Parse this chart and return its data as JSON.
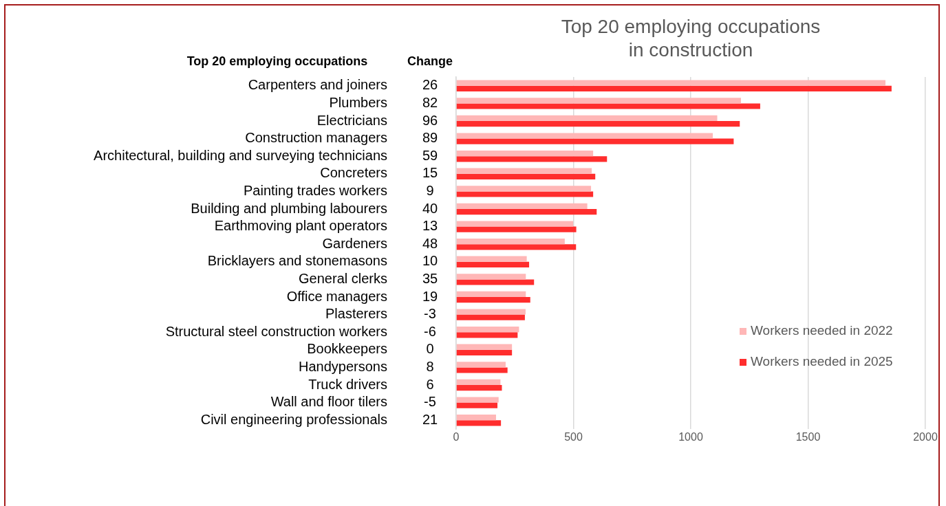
{
  "chart_data": {
    "type": "bar",
    "orientation": "horizontal",
    "title": "Top 20 employing occupations in construction",
    "categories": [
      "Carpenters and joiners",
      "Plumbers",
      "Electricians",
      "Construction managers",
      "Architectural, building and surveying technicians",
      "Concreters",
      "Painting trades workers",
      "Building and plumbing labourers",
      "Earthmoving plant operators",
      "Gardeners",
      "Bricklayers and stonemasons",
      "General clerks",
      "Office managers",
      "Plasterers",
      "Structural steel construction workers",
      "Bookkeepers",
      "Handypersons",
      "Truck drivers",
      "Wall and floor tilers",
      "Civil engineering professionals"
    ],
    "series": [
      {
        "name": "Workers needed in 2022",
        "color": "#ffb7b7",
        "values": [
          1830,
          1214,
          1113,
          1094,
          584,
          578,
          575,
          559,
          499,
          463,
          301,
          297,
          297,
          296,
          268,
          238,
          211,
          189,
          181,
          170
        ]
      },
      {
        "name": "Workers needed in 2025",
        "color": "#ff2d2d",
        "values": [
          1856,
          1296,
          1209,
          1183,
          643,
          593,
          584,
          599,
          512,
          511,
          311,
          332,
          316,
          293,
          262,
          238,
          219,
          195,
          176,
          191
        ]
      }
    ],
    "xlim": [
      0,
      2000
    ],
    "xticks": [
      0,
      500,
      1000,
      1500,
      2000
    ],
    "grid": "x",
    "legend": "bottom right",
    "annotations": [
      "Top 20 employing occupations",
      "Change",
      "26",
      "82",
      "96",
      "89",
      "59",
      "15",
      "9",
      "40",
      "13",
      "48",
      "10",
      "35",
      "19",
      "-3",
      "-6",
      "0",
      "8",
      "6",
      "-5",
      "21"
    ]
  }
}
